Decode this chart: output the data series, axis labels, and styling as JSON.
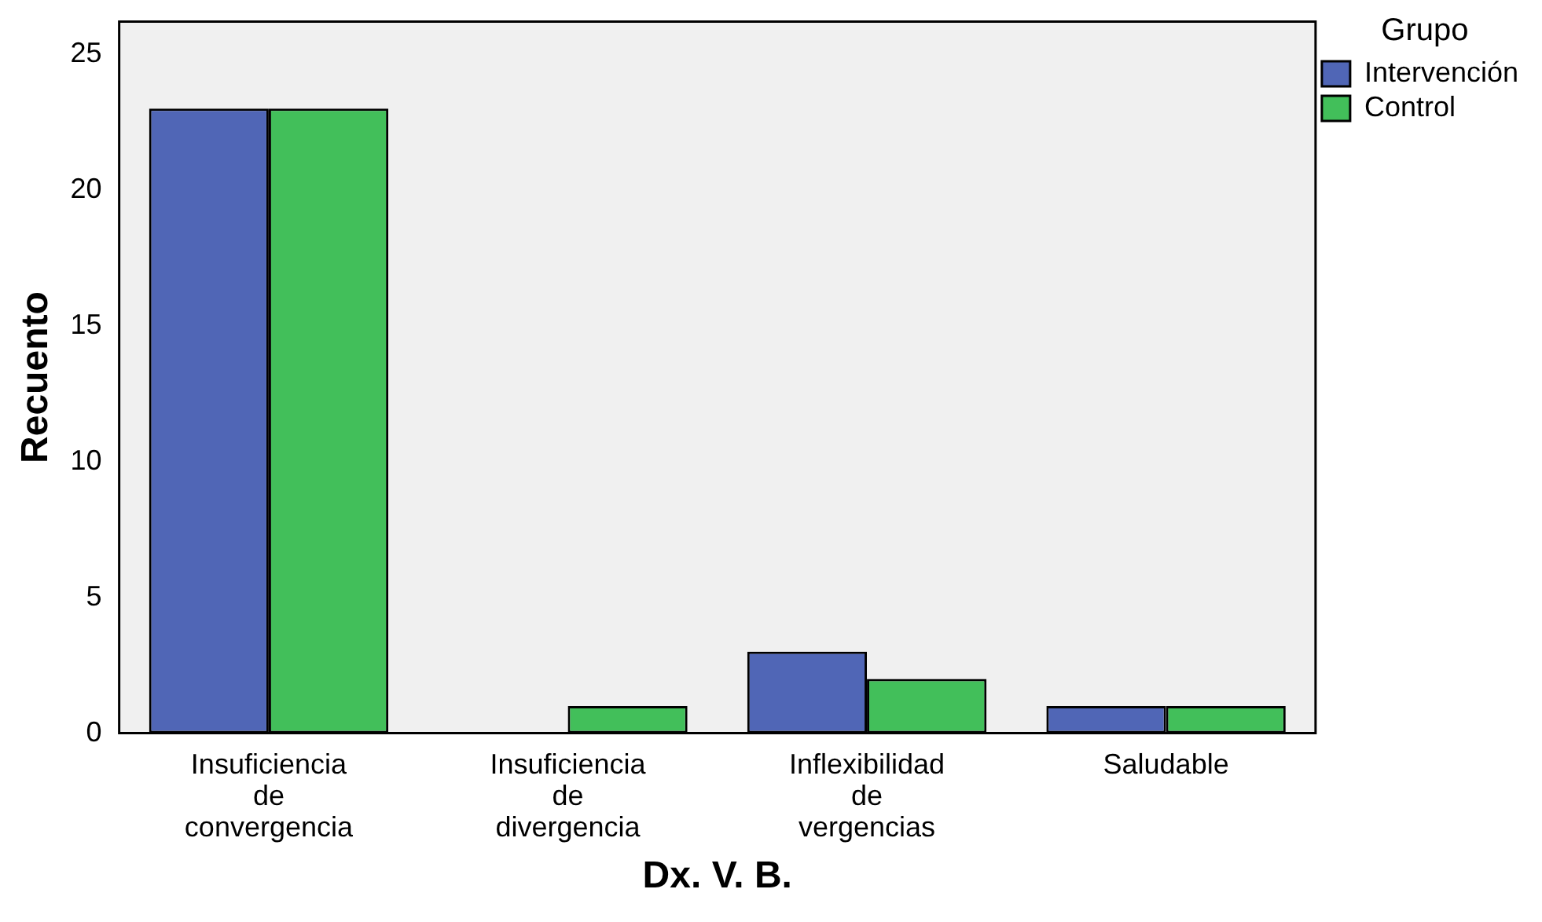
{
  "chart_data": {
    "type": "bar",
    "xlabel": "Dx. V. B.",
    "ylabel": "Recuento",
    "legend_title": "Grupo",
    "legend": "top right",
    "grid": false,
    "categories": [
      "Insuficiencia de convergencia",
      "Insuficiencia de divergencia",
      "Inflexibilidad de vergencias",
      "Saludable"
    ],
    "series": [
      {
        "name": "Intervención",
        "color": "#5066b6",
        "values": [
          23,
          0,
          3,
          1
        ]
      },
      {
        "name": "Control",
        "color": "#42bf5a",
        "values": [
          23,
          1,
          2,
          1
        ]
      }
    ],
    "ylim": [
      0,
      26.2
    ],
    "yticks": [
      0,
      5,
      10,
      15,
      20,
      25
    ]
  }
}
